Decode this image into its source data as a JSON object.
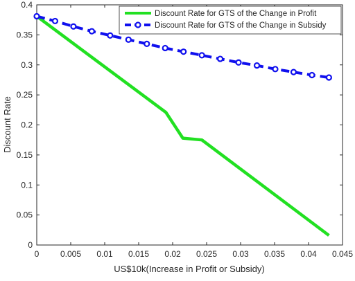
{
  "chart_data": {
    "type": "line",
    "xlabel": "US$10k(Increase in Profit or Subsidy)",
    "ylabel": "Discount Rate",
    "xlim": [
      0,
      0.045
    ],
    "ylim": [
      0,
      0.4
    ],
    "xticks": [
      "0",
      "0.005",
      "0.01",
      "0.015",
      "0.02",
      "0.025",
      "0.03",
      "0.035",
      "0.04",
      "0.045"
    ],
    "yticks": [
      "0",
      "0.05",
      "0.1",
      "0.15",
      "0.2",
      "0.25",
      "0.3",
      "0.35",
      "0.4"
    ],
    "grid": false,
    "legend_position": "top-right",
    "series": [
      {
        "name": "Discount Rate for GTS of the Change in Profit",
        "color": "#22e022",
        "style": "solid",
        "marker": "none",
        "x": [
          0,
          0.019,
          0.0215,
          0.0243,
          0.043
        ],
        "y": [
          0.381,
          0.221,
          0.178,
          0.175,
          0.016
        ]
      },
      {
        "name": "Discount Rate for GTS of the Change in Subsidy",
        "color": "#1010ee",
        "style": "dashed",
        "marker": "circle",
        "x": [
          0,
          0.0027,
          0.0054,
          0.0081,
          0.0108,
          0.0135,
          0.0162,
          0.0189,
          0.0216,
          0.0243,
          0.027,
          0.0297,
          0.0324,
          0.0351,
          0.0378,
          0.0405,
          0.043
        ],
        "y": [
          0.381,
          0.373,
          0.364,
          0.356,
          0.349,
          0.342,
          0.335,
          0.328,
          0.322,
          0.316,
          0.31,
          0.304,
          0.299,
          0.293,
          0.288,
          0.283,
          0.279
        ]
      }
    ]
  }
}
